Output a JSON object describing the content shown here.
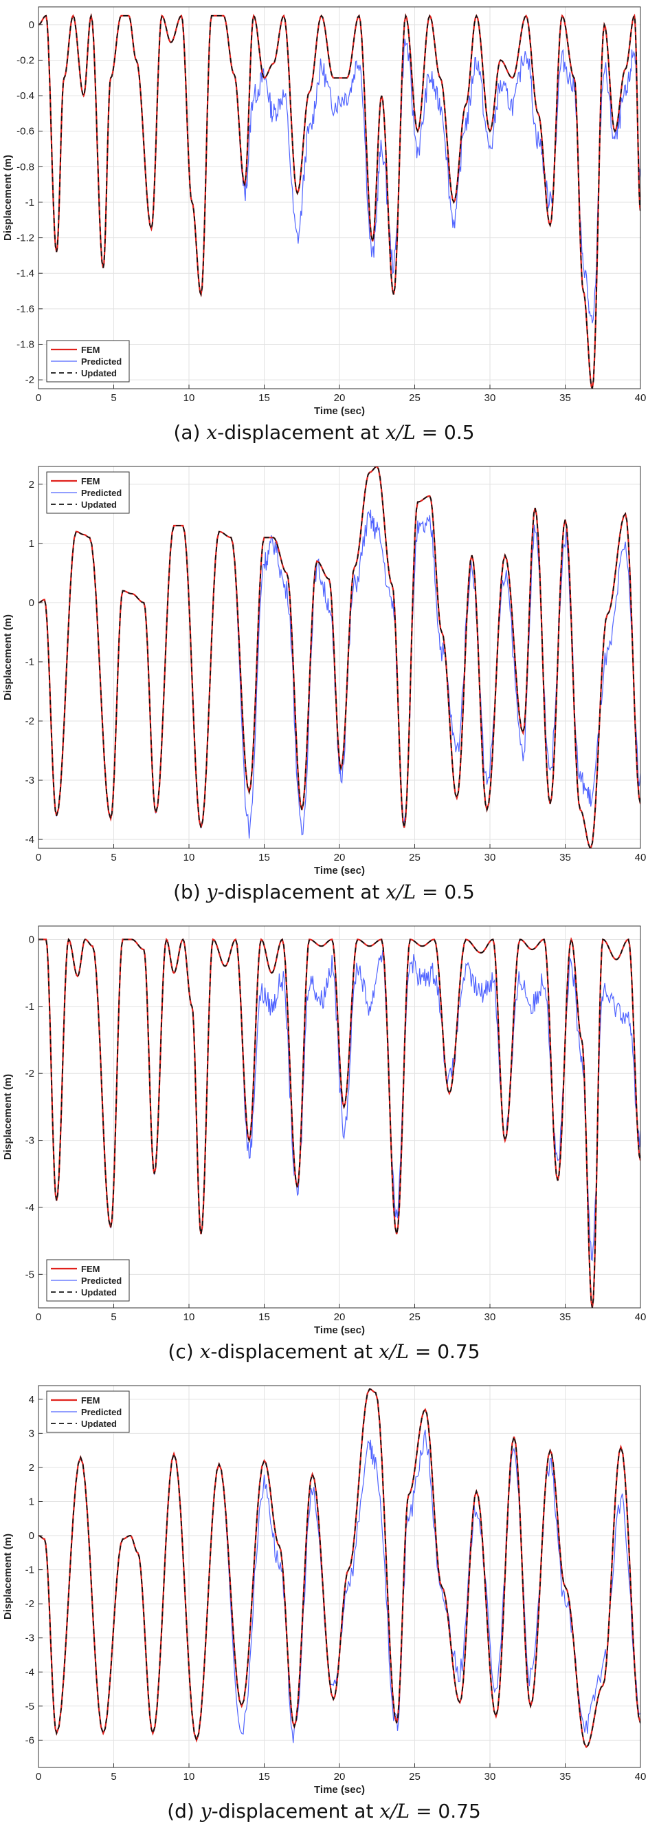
{
  "colors": {
    "fem": "#e0201b",
    "predicted": "#4f63ff",
    "updated": "#111111",
    "grid": "#e2e2e2",
    "axis": "#333333"
  },
  "chart_data": [
    {
      "type": "line",
      "caption_letter": "(a)",
      "caption_var": "x",
      "caption_rest": "-displacement at",
      "caption_loc": "x/L",
      "caption_val": "= 0.5",
      "xlabel": "Time (sec)",
      "ylabel": "Displacement (m)",
      "xlim": [
        0,
        40
      ],
      "ylim": [
        -2.05,
        0.1
      ],
      "xticks": [
        0,
        5,
        10,
        15,
        20,
        25,
        30,
        35,
        40
      ],
      "yticks": [
        0,
        -0.2,
        -0.4,
        -0.6,
        -0.8,
        -1,
        -1.2,
        -1.4,
        -1.6,
        -1.8,
        -2
      ],
      "grid": true,
      "legend_position": "bottom-left",
      "series": [
        {
          "name": "FEM",
          "style": "solid"
        },
        {
          "name": "Predicted",
          "style": "solid-thin"
        },
        {
          "name": "Updated",
          "style": "dashed"
        }
      ],
      "x": [
        0,
        0.5,
        1.2,
        1.7,
        2.3,
        3.0,
        3.5,
        4.3,
        4.8,
        5.5,
        6.0,
        6.5,
        7.5,
        8.2,
        8.8,
        9.5,
        10.2,
        10.8,
        11.5,
        12.3,
        13.0,
        13.7,
        14.3,
        15.0,
        15.6,
        16.3,
        17.2,
        18.0,
        18.8,
        19.6,
        20.5,
        21.3,
        22.2,
        22.8,
        23.6,
        24.4,
        25.2,
        26.0,
        26.7,
        27.6,
        28.4,
        29.1,
        30.0,
        30.7,
        31.5,
        32.4,
        33.2,
        34.0,
        34.8,
        35.6,
        36.2,
        36.8,
        37.6,
        38.3,
        39.0,
        39.6,
        40.0
      ],
      "fem": [
        0,
        0.05,
        -1.28,
        -0.3,
        0.05,
        -0.4,
        0.05,
        -1.37,
        -0.3,
        0.05,
        0.05,
        -0.2,
        -1.15,
        0.05,
        -0.1,
        0.05,
        -1.0,
        -1.52,
        0.05,
        0.05,
        -0.28,
        -0.9,
        0.05,
        -0.3,
        -0.22,
        0.05,
        -0.95,
        -0.38,
        0.05,
        -0.3,
        -0.3,
        0.05,
        -1.22,
        -0.4,
        -1.52,
        0.05,
        -0.6,
        0.05,
        -0.3,
        -1.0,
        -0.45,
        0.05,
        -0.6,
        -0.2,
        -0.3,
        0.05,
        -0.5,
        -1.13,
        0.05,
        -0.3,
        -1.5,
        -2.05,
        0.0,
        -0.6,
        -0.25,
        0.05,
        -1.05
      ],
      "predicted": [
        0,
        0.05,
        -1.28,
        -0.3,
        0.05,
        -0.4,
        0.05,
        -1.37,
        -0.3,
        0.05,
        0.05,
        -0.2,
        -1.15,
        0.05,
        -0.1,
        0.05,
        -1.0,
        -1.52,
        0.05,
        0.05,
        -0.28,
        -0.95,
        -0.4,
        -0.3,
        -0.5,
        -0.4,
        -1.2,
        -0.6,
        -0.25,
        -0.45,
        -0.4,
        -0.2,
        -1.3,
        -0.7,
        -1.35,
        -0.1,
        -0.7,
        -0.3,
        -0.45,
        -1.1,
        -0.55,
        -0.2,
        -0.7,
        -0.35,
        -0.45,
        -0.15,
        -0.65,
        -1.0,
        -0.2,
        -0.35,
        -1.35,
        -1.7,
        -0.25,
        -0.65,
        -0.4,
        -0.15,
        -0.9
      ]
    },
    {
      "type": "line",
      "caption_letter": "(b)",
      "caption_var": "y",
      "caption_rest": "-displacement at",
      "caption_loc": "x/L",
      "caption_val": "= 0.5",
      "xlabel": "Time (sec)",
      "ylabel": "Displacement (m)",
      "xlim": [
        0,
        40
      ],
      "ylim": [
        -4.15,
        2.3
      ],
      "xticks": [
        0,
        5,
        10,
        15,
        20,
        25,
        30,
        35,
        40
      ],
      "yticks": [
        2,
        1,
        0,
        -1,
        -2,
        -3,
        -4
      ],
      "grid": true,
      "legend_position": "top-left",
      "series": [
        {
          "name": "FEM",
          "style": "solid"
        },
        {
          "name": "Predicted",
          "style": "solid-thin"
        },
        {
          "name": "Updated",
          "style": "dashed"
        }
      ],
      "x": [
        0,
        0.4,
        1.2,
        2.5,
        3.0,
        3.4,
        4.8,
        5.6,
        6.2,
        7.0,
        7.8,
        9.0,
        9.6,
        10.8,
        12.0,
        12.8,
        14.0,
        15.0,
        15.6,
        16.5,
        17.5,
        18.5,
        19.3,
        20.1,
        21.0,
        22.0,
        22.5,
        23.5,
        24.3,
        25.2,
        26.0,
        26.8,
        27.8,
        28.8,
        29.8,
        31.0,
        32.2,
        33.0,
        34.0,
        35.0,
        36.0,
        36.7,
        37.8,
        39.0,
        40.0
      ],
      "fem": [
        0,
        0.05,
        -3.6,
        1.2,
        1.15,
        1.1,
        -3.65,
        0.2,
        0.15,
        0.0,
        -3.55,
        1.3,
        1.3,
        -3.8,
        1.2,
        1.1,
        -3.2,
        1.1,
        1.1,
        0.5,
        -3.5,
        0.7,
        0.4,
        -2.8,
        0.6,
        2.2,
        2.3,
        0.3,
        -3.8,
        1.7,
        1.8,
        -0.5,
        -3.3,
        0.8,
        -3.5,
        0.8,
        -2.2,
        1.6,
        -3.4,
        1.4,
        -3.5,
        -4.15,
        -0.2,
        1.5,
        -3.4
      ],
      "predicted": [
        0,
        0.05,
        -3.6,
        1.2,
        1.15,
        1.1,
        -3.65,
        0.2,
        0.15,
        0.0,
        -3.55,
        1.3,
        1.3,
        -3.8,
        1.2,
        1.1,
        -3.8,
        0.7,
        1.0,
        0.2,
        -3.9,
        0.6,
        0.0,
        -2.9,
        0.3,
        1.4,
        1.2,
        0.0,
        -3.6,
        1.2,
        1.3,
        -0.8,
        -2.5,
        0.6,
        -3.0,
        0.4,
        -2.5,
        1.2,
        -2.8,
        1.1,
        -3.0,
        -3.3,
        -0.9,
        0.9,
        -3.0
      ]
    },
    {
      "type": "line",
      "caption_letter": "(c)",
      "caption_var": "x",
      "caption_rest": "-displacement at",
      "caption_loc": "x/L",
      "caption_val": "= 0.75",
      "xlabel": "Time (sec)",
      "ylabel": "Displacement (m)",
      "xlim": [
        0,
        40
      ],
      "ylim": [
        -5.5,
        0.2
      ],
      "xticks": [
        0,
        5,
        10,
        15,
        20,
        25,
        30,
        35,
        40
      ],
      "yticks": [
        0,
        -1,
        -2,
        -3,
        -4,
        -5
      ],
      "grid": true,
      "legend_position": "bottom-left",
      "series": [
        {
          "name": "FEM",
          "style": "solid"
        },
        {
          "name": "Predicted",
          "style": "solid-thin"
        },
        {
          "name": "Updated",
          "style": "dashed"
        }
      ],
      "x": [
        0,
        0.5,
        1.2,
        2.0,
        2.6,
        3.1,
        3.6,
        4.8,
        5.6,
        6.2,
        7.0,
        7.7,
        8.5,
        9.0,
        9.6,
        10.2,
        10.8,
        11.6,
        12.4,
        13.1,
        14.0,
        14.8,
        15.5,
        16.2,
        17.2,
        18.0,
        18.8,
        19.5,
        20.3,
        21.2,
        22.0,
        22.8,
        23.8,
        24.7,
        25.5,
        26.3,
        27.3,
        28.4,
        29.4,
        30.2,
        31.0,
        32.0,
        32.8,
        33.6,
        34.5,
        35.4,
        36.1,
        36.8,
        37.5,
        38.4,
        39.2,
        40.0
      ],
      "fem": [
        0,
        0,
        -3.9,
        0,
        -0.55,
        0,
        -0.1,
        -4.3,
        0,
        0,
        -0.15,
        -3.5,
        0,
        -0.5,
        0,
        -1.0,
        -4.4,
        0,
        -0.4,
        0,
        -3.0,
        0,
        -0.5,
        0,
        -3.7,
        0,
        -0.1,
        0,
        -2.5,
        0,
        -0.1,
        0,
        -4.4,
        0,
        -0.1,
        0,
        -2.3,
        0,
        -0.2,
        0,
        -3.0,
        0,
        -0.15,
        0,
        -3.6,
        0,
        -1.5,
        -5.5,
        0,
        -0.3,
        0,
        -3.3
      ],
      "predicted": [
        0,
        0,
        -3.9,
        0,
        -0.55,
        0,
        -0.1,
        -4.3,
        0,
        0,
        -0.15,
        -3.5,
        0,
        -0.5,
        0,
        -1.0,
        -4.4,
        0,
        -0.4,
        0,
        -3.2,
        -0.8,
        -1.0,
        -0.6,
        -3.8,
        -0.6,
        -0.9,
        -0.4,
        -2.8,
        -0.4,
        -1.0,
        -0.2,
        -4.1,
        -0.3,
        -0.6,
        -0.5,
        -2.1,
        -0.5,
        -0.8,
        -0.6,
        -2.9,
        -0.6,
        -1.0,
        -0.6,
        -3.3,
        -0.4,
        -1.8,
        -4.7,
        -0.8,
        -1.0,
        -1.2,
        -3.0
      ]
    },
    {
      "type": "line",
      "caption_letter": "(d)",
      "caption_var": "y",
      "caption_rest": "-displacement at",
      "caption_loc": "x/L",
      "caption_val": "= 0.75",
      "xlabel": "Time (sec)",
      "ylabel": "Displacement (m)",
      "xlim": [
        0,
        40
      ],
      "ylim": [
        -6.8,
        4.4
      ],
      "xticks": [
        0,
        5,
        10,
        15,
        20,
        25,
        30,
        35,
        40
      ],
      "yticks": [
        4,
        3,
        2,
        1,
        0,
        -1,
        -2,
        -3,
        -4,
        -5,
        -6
      ],
      "grid": true,
      "legend_position": "top-left",
      "series": [
        {
          "name": "FEM",
          "style": "solid"
        },
        {
          "name": "Predicted",
          "style": "solid-thin"
        },
        {
          "name": "Updated",
          "style": "dashed"
        }
      ],
      "x": [
        0,
        0.4,
        1.2,
        2.8,
        4.3,
        5.6,
        6.1,
        6.6,
        7.6,
        9.0,
        10.5,
        12.0,
        13.5,
        15.0,
        16.0,
        17.0,
        18.2,
        19.6,
        20.6,
        22.0,
        22.4,
        23.8,
        24.6,
        25.7,
        26.8,
        28.0,
        29.1,
        30.4,
        31.6,
        32.7,
        34.0,
        35.0,
        36.4,
        37.5,
        38.7,
        40.0
      ],
      "fem": [
        0,
        -0.1,
        -5.8,
        2.3,
        -5.8,
        -0.1,
        0.0,
        -0.5,
        -5.8,
        2.4,
        -6.0,
        2.1,
        -5.0,
        2.2,
        -0.3,
        -5.6,
        1.8,
        -4.8,
        -1.0,
        4.3,
        4.2,
        -5.5,
        1.2,
        3.7,
        -1.5,
        -4.9,
        1.3,
        -5.3,
        2.9,
        -5.0,
        2.5,
        -1.5,
        -6.2,
        -4.4,
        2.6,
        -5.5
      ],
      "predicted": [
        0,
        -0.1,
        -5.8,
        2.3,
        -5.8,
        -0.1,
        0.0,
        -0.5,
        -5.8,
        2.4,
        -6.0,
        2.1,
        -5.8,
        1.5,
        -0.8,
        -5.9,
        1.2,
        -4.6,
        -1.3,
        2.5,
        2.0,
        -5.6,
        0.6,
        2.8,
        -1.8,
        -4.0,
        0.9,
        -4.4,
        2.4,
        -4.2,
        2.0,
        -2.0,
        -5.5,
        -3.9,
        1.0,
        -5.2
      ]
    }
  ]
}
